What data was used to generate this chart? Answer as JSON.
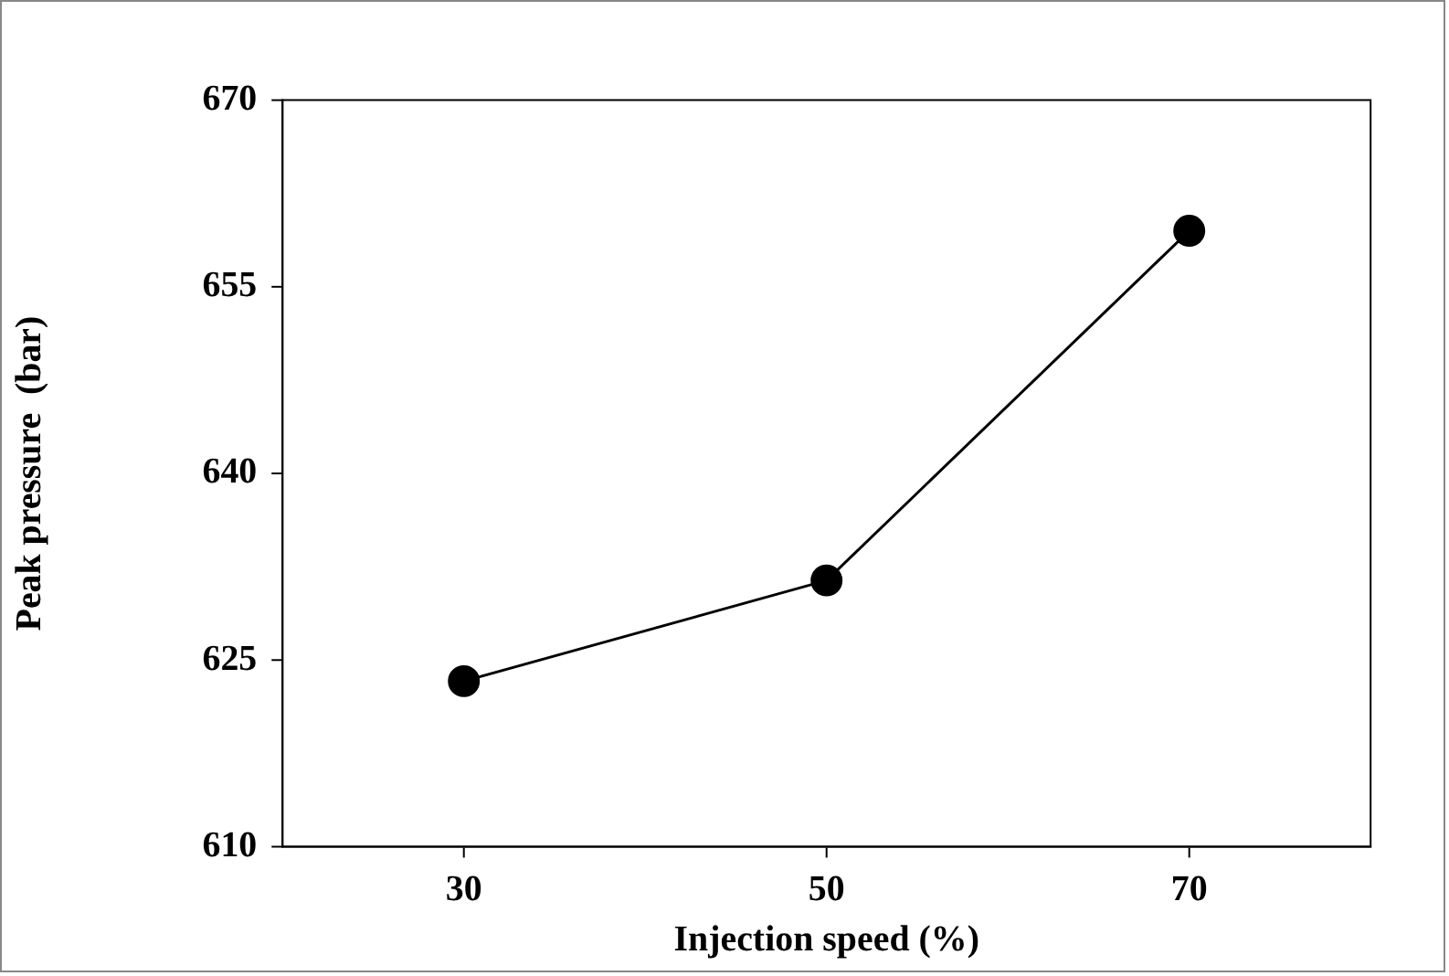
{
  "chart_data": {
    "type": "line",
    "xlabel": "Injection speed (%)",
    "ylabel": "Peak pressure  (bar)",
    "x": [
      30,
      50,
      70
    ],
    "series": [
      {
        "color": "#000000",
        "values": [
          623.3,
          631.4,
          659.5
        ]
      }
    ],
    "xlim": [
      20,
      80
    ],
    "xticks": [
      30,
      50,
      70
    ],
    "ylim": [
      610,
      670
    ],
    "yticks": [
      610,
      625,
      640,
      655,
      670
    ],
    "grid": false,
    "legend": false,
    "marker": "circle",
    "line_style": "solid"
  }
}
